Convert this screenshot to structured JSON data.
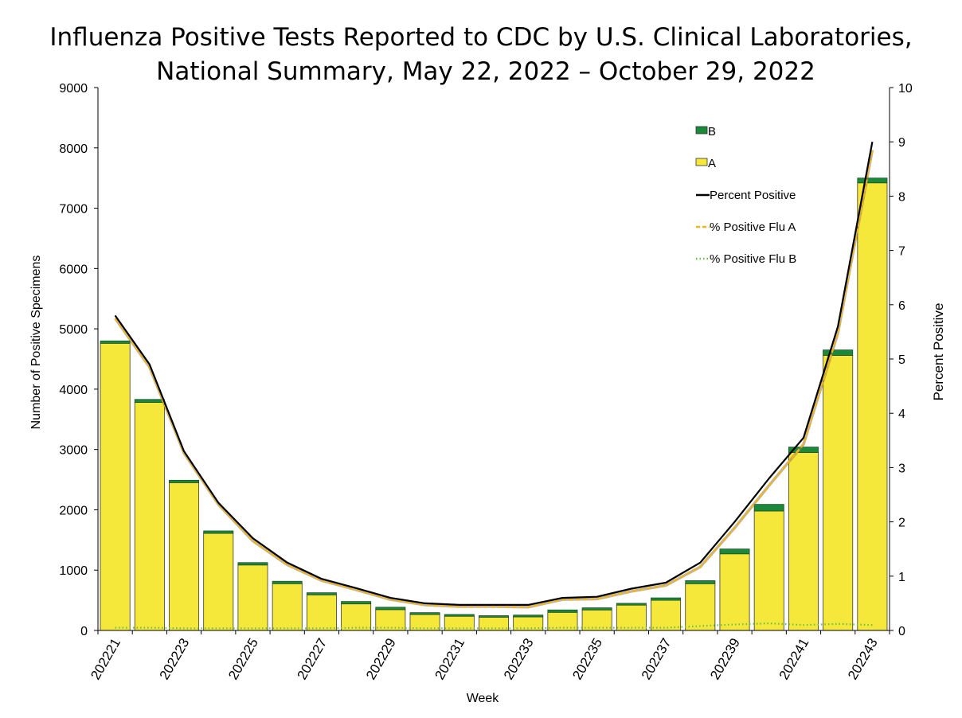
{
  "chart_data": {
    "type": "bar",
    "title_lines": [
      "Influenza Positive Tests Reported to CDC by U.S. Clinical Laboratories,",
      "National Summary, May 22, 2022 – October 29, 2022"
    ],
    "xlabel": "Week",
    "ylabel": "Number of Positive Specimens",
    "y2label": "Percent Positive",
    "ylim": [
      0,
      9000
    ],
    "y2lim": [
      0,
      10
    ],
    "yticks": [
      "0",
      "1000",
      "2000",
      "3000",
      "4000",
      "5000",
      "6000",
      "7000",
      "8000",
      "9000"
    ],
    "y2ticks": [
      "0",
      "1",
      "2",
      "3",
      "4",
      "5",
      "6",
      "7",
      "8",
      "9",
      "10"
    ],
    "categories": [
      "202221",
      "202222",
      "202223",
      "202224",
      "202225",
      "202226",
      "202227",
      "202228",
      "202229",
      "202230",
      "202231",
      "202232",
      "202233",
      "202234",
      "202235",
      "202236",
      "202237",
      "202238",
      "202239",
      "202240",
      "202241",
      "202242",
      "202243"
    ],
    "xtick_labels": [
      "202221",
      "202223",
      "202225",
      "202227",
      "202229",
      "202231",
      "202233",
      "202235",
      "202237",
      "202239",
      "202241",
      "202243"
    ],
    "series": [
      {
        "name": "A",
        "kind": "bar",
        "color": "#f5e83a",
        "values": [
          4760,
          3780,
          2450,
          1610,
          1085,
          775,
          590,
          440,
          345,
          265,
          235,
          220,
          225,
          300,
          340,
          420,
          500,
          775,
          1270,
          1980,
          2950,
          4560,
          7420
        ]
      },
      {
        "name": "B",
        "kind": "bar",
        "color": "#1a8a3a",
        "values": [
          40,
          50,
          40,
          40,
          40,
          40,
          35,
          40,
          40,
          30,
          30,
          25,
          30,
          40,
          35,
          30,
          40,
          50,
          80,
          110,
          90,
          90,
          80
        ]
      },
      {
        "name": "Percent Positive",
        "kind": "line",
        "color": "#000000",
        "values": [
          5.8,
          4.9,
          3.3,
          2.35,
          1.7,
          1.25,
          0.95,
          0.78,
          0.6,
          0.5,
          0.47,
          0.47,
          0.47,
          0.6,
          0.62,
          0.77,
          0.88,
          1.25,
          2.0,
          2.8,
          3.55,
          5.6,
          9.0
        ]
      },
      {
        "name": "% Positive Flu A",
        "kind": "line",
        "color": "#f0b51e",
        "values": [
          5.75,
          4.85,
          3.27,
          2.32,
          1.65,
          1.21,
          0.92,
          0.75,
          0.57,
          0.47,
          0.44,
          0.44,
          0.43,
          0.57,
          0.58,
          0.72,
          0.83,
          1.17,
          1.89,
          2.67,
          3.43,
          5.48,
          8.85
        ]
      },
      {
        "name": "% Positive Flu B",
        "kind": "line",
        "color": "#6cc04a",
        "values": [
          0.05,
          0.05,
          0.04,
          0.04,
          0.04,
          0.04,
          0.04,
          0.05,
          0.05,
          0.04,
          0.04,
          0.04,
          0.04,
          0.05,
          0.05,
          0.05,
          0.05,
          0.08,
          0.11,
          0.13,
          0.1,
          0.12,
          0.1
        ]
      }
    ],
    "legend": [
      {
        "label": "B",
        "kind": "box",
        "color": "#1a8a3a"
      },
      {
        "label": "A",
        "kind": "box",
        "color": "#f5e83a"
      },
      {
        "label": "Percent Positive",
        "kind": "solid",
        "color": "#000000"
      },
      {
        "label": "% Positive Flu A",
        "kind": "dashed",
        "color": "#f0b51e"
      },
      {
        "label": "% Positive Flu B",
        "kind": "dotted",
        "color": "#6cc04a"
      }
    ],
    "legend_position": "top-right"
  }
}
